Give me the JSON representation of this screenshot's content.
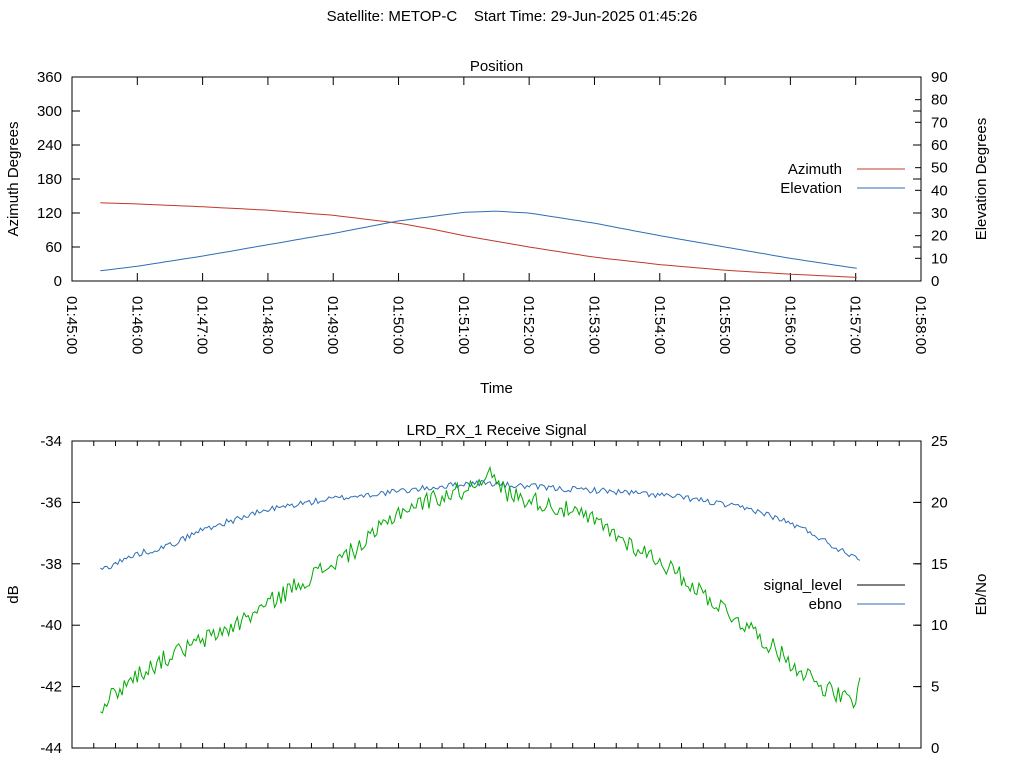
{
  "header": {
    "title": "Satellite: METOP-C    Start Time: 29-Jun-2025 01:45:26"
  },
  "chart_data": [
    {
      "type": "line",
      "title": "Position",
      "xlabel": "Time",
      "ylabel": "Azimuth Degrees",
      "y2label": "Elevation Degrees",
      "xlim": [
        "01:45:00",
        "01:58:00"
      ],
      "x_ticks": [
        "01:45:00",
        "01:46:00",
        "01:47:00",
        "01:48:00",
        "01:49:00",
        "01:50:00",
        "01:51:00",
        "01:52:00",
        "01:53:00",
        "01:54:00",
        "01:55:00",
        "01:56:00",
        "01:57:00",
        "01:58:00"
      ],
      "ylim": [
        0,
        360
      ],
      "y_ticks": [
        0,
        60,
        120,
        180,
        240,
        300,
        360
      ],
      "y2lim": [
        0,
        90
      ],
      "y2_ticks": [
        0,
        10,
        20,
        30,
        40,
        50,
        60,
        70,
        80,
        90
      ],
      "grid": false,
      "legend_position": "right",
      "series": [
        {
          "name": "Azimuth",
          "axis": "left",
          "color": "#c0392b",
          "x": [
            "01:45:26",
            "01:46:00",
            "01:47:00",
            "01:48:00",
            "01:49:00",
            "01:50:00",
            "01:50:30",
            "01:51:00",
            "01:52:00",
            "01:53:00",
            "01:54:00",
            "01:55:00",
            "01:56:00",
            "01:57:05"
          ],
          "y": [
            138,
            136,
            131,
            125,
            116,
            102,
            92,
            80,
            60,
            42,
            29,
            19,
            12,
            6
          ]
        },
        {
          "name": "Elevation",
          "axis": "right",
          "color": "#2e6fb5",
          "x": [
            "01:45:26",
            "01:46:00",
            "01:47:00",
            "01:48:00",
            "01:49:00",
            "01:50:00",
            "01:51:00",
            "01:51:30",
            "01:52:00",
            "01:53:00",
            "01:54:00",
            "01:55:00",
            "01:56:00",
            "01:57:05"
          ],
          "y": [
            4.5,
            6.5,
            11,
            16,
            21,
            26.5,
            30.3,
            30.8,
            30,
            25.5,
            20,
            15,
            10,
            5.3
          ]
        }
      ]
    },
    {
      "type": "line",
      "title": "LRD_RX_1 Receive Signal",
      "ylabel": "dB",
      "y2label": "Eb/No",
      "xlim": [
        "01:45:00",
        "01:58:00"
      ],
      "ylim": [
        -44,
        -34
      ],
      "y_ticks": [
        -44,
        -42,
        -40,
        -38,
        -36,
        -34
      ],
      "y2lim": [
        0,
        25
      ],
      "y2_ticks": [
        0,
        5,
        10,
        15,
        20,
        25
      ],
      "grid": false,
      "legend_position": "right",
      "series": [
        {
          "name": "signal_level",
          "axis": "left",
          "color": "#000000",
          "x": [],
          "y": []
        },
        {
          "name": "ebno",
          "axis": "right",
          "color": "#2e6fb5",
          "x": [
            "01:45:26",
            "01:46:00",
            "01:46:30",
            "01:47:00",
            "01:47:30",
            "01:48:00",
            "01:48:30",
            "01:49:00",
            "01:49:30",
            "01:50:00",
            "01:50:30",
            "01:51:00",
            "01:51:20",
            "01:51:40",
            "01:52:00",
            "01:52:30",
            "01:53:00",
            "01:53:30",
            "01:54:00",
            "01:54:30",
            "01:55:00",
            "01:55:30",
            "01:56:00",
            "01:56:20",
            "01:56:40",
            "01:57:00",
            "01:57:05"
          ],
          "y": [
            14.5,
            15.8,
            16.5,
            17.8,
            18.6,
            19.4,
            19.9,
            20.3,
            20.6,
            20.9,
            21.2,
            21.5,
            21.6,
            21.4,
            21.3,
            21.1,
            21.0,
            20.8,
            20.6,
            20.3,
            19.8,
            19.3,
            18.3,
            17.5,
            16.4,
            15.6,
            15.5
          ]
        },
        {
          "name": "",
          "axis": "left",
          "color": "#00aa00",
          "x": [
            "01:45:26",
            "01:45:40",
            "01:46:00",
            "01:46:30",
            "01:47:00",
            "01:47:30",
            "01:48:00",
            "01:48:30",
            "01:49:00",
            "01:49:30",
            "01:50:00",
            "01:50:30",
            "01:51:00",
            "01:51:10",
            "01:51:20",
            "01:51:40",
            "01:52:00",
            "01:52:30",
            "01:53:00",
            "01:53:30",
            "01:54:00",
            "01:54:30",
            "01:55:00",
            "01:55:30",
            "01:56:00",
            "01:56:30",
            "01:57:00",
            "01:57:05"
          ],
          "y": [
            -42.7,
            -42.2,
            -41.6,
            -41.0,
            -40.5,
            -40.0,
            -39.3,
            -38.6,
            -38.0,
            -37.3,
            -36.3,
            -35.9,
            -35.6,
            -35.4,
            -35.0,
            -35.7,
            -35.9,
            -36.2,
            -36.6,
            -37.3,
            -37.9,
            -38.7,
            -39.5,
            -40.3,
            -41.2,
            -42.0,
            -42.6,
            -41.6
          ]
        }
      ]
    }
  ]
}
